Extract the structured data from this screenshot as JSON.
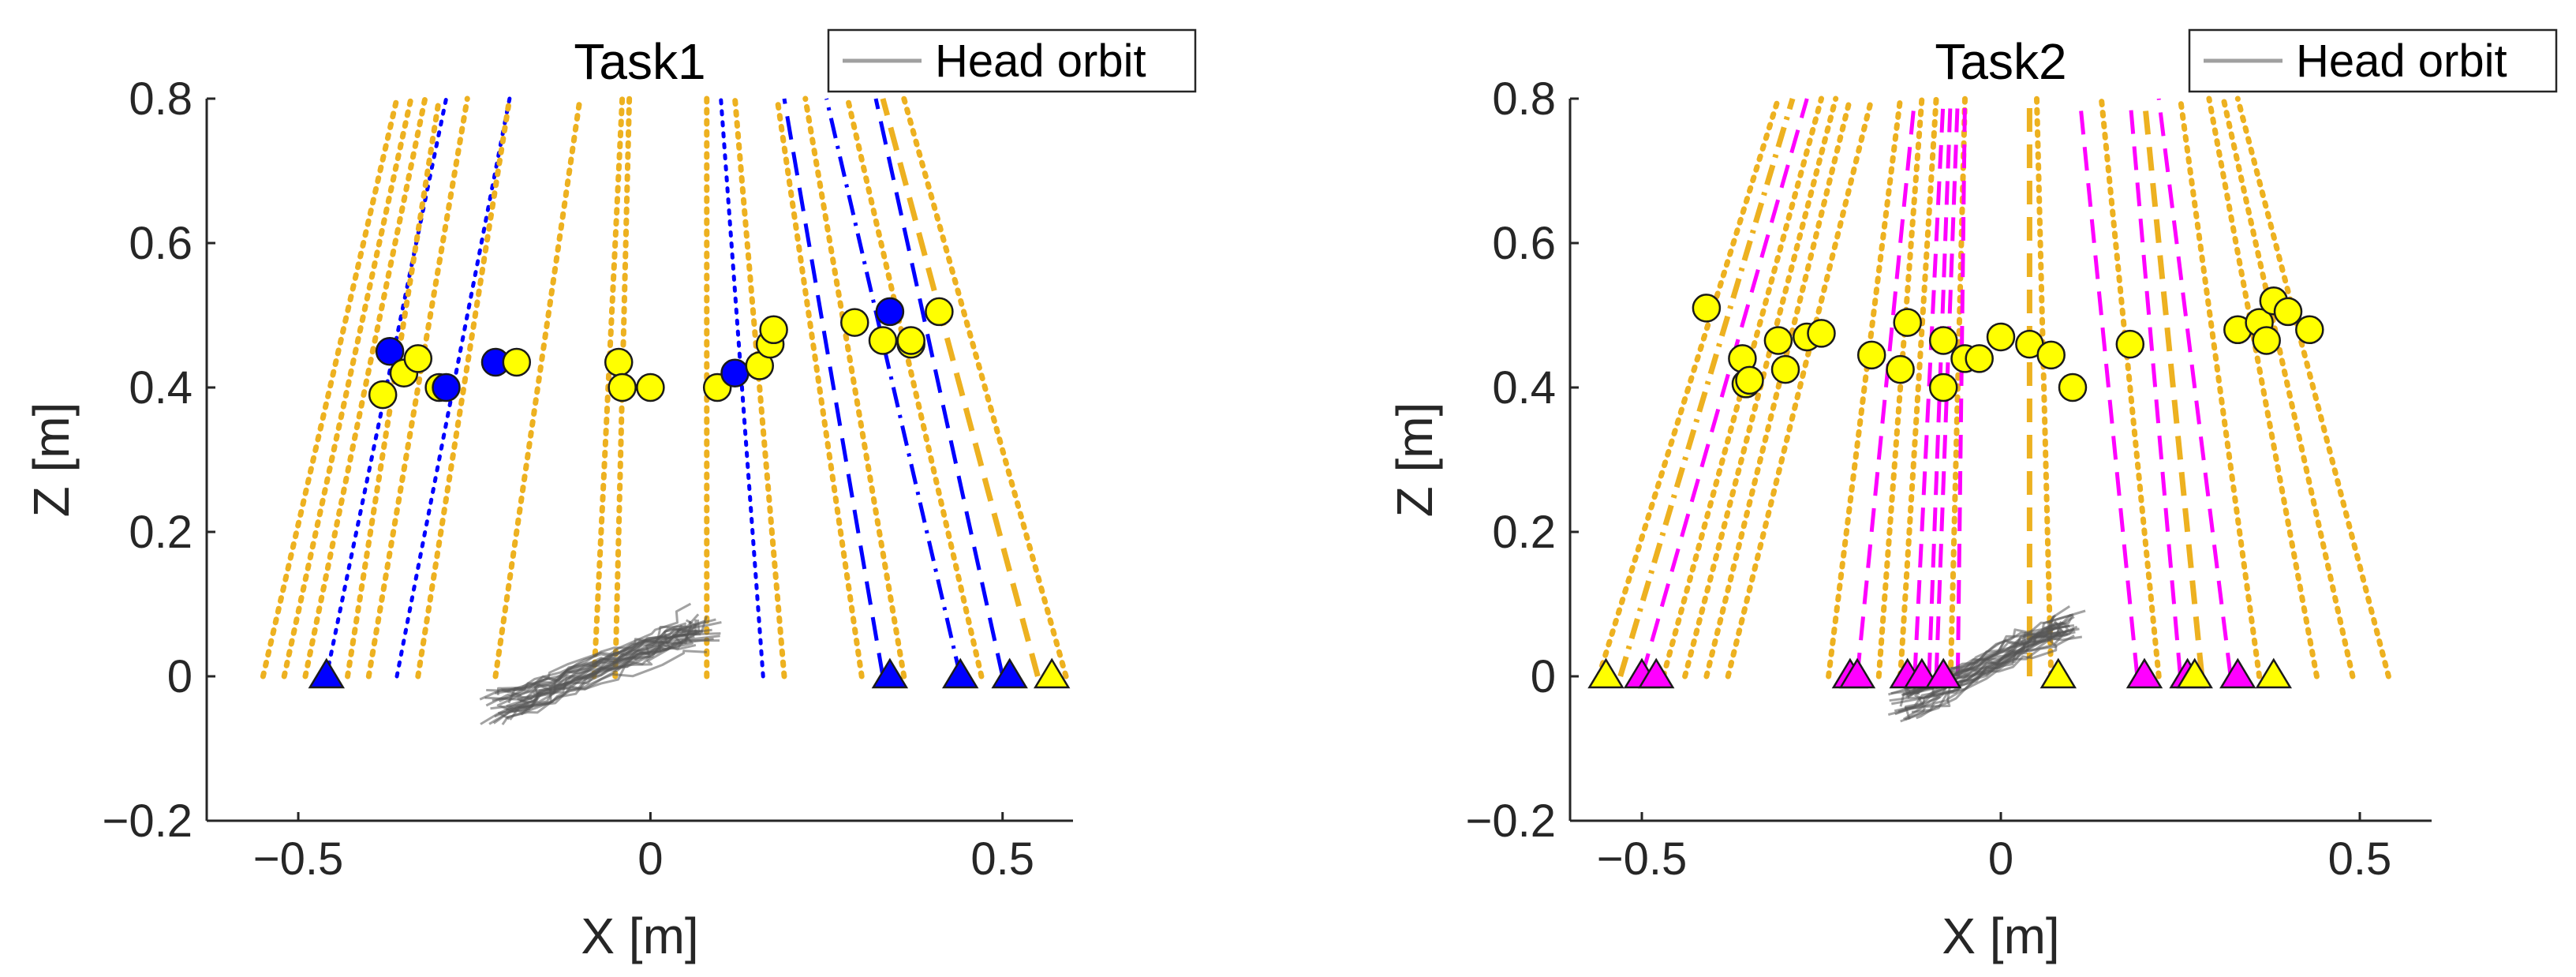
{
  "colors": {
    "orange": "#EDB120",
    "blue": "#0000FF",
    "magenta": "#FF00FF",
    "yellow": "#FFFF00",
    "head": "#555555"
  },
  "chart_data": [
    {
      "type": "scatter",
      "title": "Task1",
      "xlabel": "X [m]",
      "ylabel": "Z [m]",
      "xlim": [
        -0.63,
        0.6
      ],
      "ylim": [
        -0.2,
        0.8
      ],
      "xticks": [
        -0.5,
        0,
        0.5
      ],
      "xtick_labels": [
        "−0.5",
        "0",
        "0.5"
      ],
      "yticks": [
        -0.2,
        0,
        0.2,
        0.4,
        0.6,
        0.8
      ],
      "ytick_labels": [
        "−0.2",
        "0",
        "0.2",
        "0.4",
        "0.6",
        "0.8"
      ],
      "legend": {
        "label": "Head orbit",
        "location": "top-right"
      },
      "line_color_key": "blue",
      "head_center": [
        -0.07,
        0.01
      ],
      "head_spread": [
        0.15,
        0.03
      ],
      "trajectories": [
        {
          "color": "orange",
          "style": "dotted",
          "x0": -0.55,
          "x1": -0.36
        },
        {
          "color": "orange",
          "style": "dotted",
          "x0": -0.52,
          "x1": -0.34
        },
        {
          "color": "orange",
          "style": "dotted",
          "x0": -0.49,
          "x1": -0.32
        },
        {
          "color": "blue",
          "style": "dotted",
          "x0": -0.46,
          "x1": -0.29
        },
        {
          "color": "orange",
          "style": "dotted",
          "x0": -0.43,
          "x1": -0.3
        },
        {
          "color": "orange",
          "style": "dotted",
          "x0": -0.4,
          "x1": -0.26
        },
        {
          "color": "blue",
          "style": "dotted",
          "x0": -0.36,
          "x1": -0.2
        },
        {
          "color": "orange",
          "style": "dotted",
          "x0": -0.33,
          "x1": -0.2
        },
        {
          "color": "orange",
          "style": "dotted",
          "x0": -0.22,
          "x1": -0.1
        },
        {
          "color": "orange",
          "style": "dotted",
          "x0": -0.08,
          "x1": -0.04
        },
        {
          "color": "orange",
          "style": "dotted",
          "x0": -0.05,
          "x1": -0.03
        },
        {
          "color": "orange",
          "style": "dotted",
          "x0": 0.08,
          "x1": 0.08
        },
        {
          "color": "blue",
          "style": "dotted",
          "x0": 0.16,
          "x1": 0.1
        },
        {
          "color": "orange",
          "style": "dotted",
          "x0": 0.19,
          "x1": 0.12
        },
        {
          "color": "orange",
          "style": "dotted",
          "x0": 0.3,
          "x1": 0.18
        },
        {
          "color": "blue",
          "style": "dashed",
          "x0": 0.33,
          "x1": 0.19
        },
        {
          "color": "orange",
          "style": "dotted",
          "x0": 0.36,
          "x1": 0.22
        },
        {
          "color": "blue",
          "style": "dashdot",
          "x0": 0.44,
          "x1": 0.25
        },
        {
          "color": "orange",
          "style": "dotted",
          "x0": 0.47,
          "x1": 0.28
        },
        {
          "color": "blue",
          "style": "dashed",
          "x0": 0.5,
          "x1": 0.32
        },
        {
          "color": "orange",
          "style": "dashed",
          "x0": 0.55,
          "x1": 0.33
        },
        {
          "color": "orange",
          "style": "dotted",
          "x0": 0.59,
          "x1": 0.36
        }
      ],
      "circles": [
        {
          "x": -0.37,
          "z": 0.45,
          "color": "blue"
        },
        {
          "x": -0.35,
          "z": 0.42,
          "color": "yellow"
        },
        {
          "x": -0.33,
          "z": 0.44,
          "color": "yellow"
        },
        {
          "x": -0.38,
          "z": 0.39,
          "color": "yellow"
        },
        {
          "x": -0.3,
          "z": 0.4,
          "color": "yellow"
        },
        {
          "x": -0.29,
          "z": 0.4,
          "color": "blue"
        },
        {
          "x": -0.22,
          "z": 0.435,
          "color": "blue"
        },
        {
          "x": -0.19,
          "z": 0.435,
          "color": "yellow"
        },
        {
          "x": -0.045,
          "z": 0.435,
          "color": "yellow"
        },
        {
          "x": -0.04,
          "z": 0.4,
          "color": "yellow"
        },
        {
          "x": 0.0,
          "z": 0.4,
          "color": "yellow"
        },
        {
          "x": 0.095,
          "z": 0.4,
          "color": "yellow"
        },
        {
          "x": 0.12,
          "z": 0.42,
          "color": "blue"
        },
        {
          "x": 0.155,
          "z": 0.43,
          "color": "yellow"
        },
        {
          "x": 0.17,
          "z": 0.46,
          "color": "yellow"
        },
        {
          "x": 0.175,
          "z": 0.48,
          "color": "yellow"
        },
        {
          "x": 0.29,
          "z": 0.49,
          "color": "yellow"
        },
        {
          "x": 0.33,
          "z": 0.465,
          "color": "yellow"
        },
        {
          "x": 0.34,
          "z": 0.505,
          "color": "blue"
        },
        {
          "x": 0.37,
          "z": 0.46,
          "color": "yellow"
        },
        {
          "x": 0.37,
          "z": 0.465,
          "color": "yellow"
        },
        {
          "x": 0.41,
          "z": 0.505,
          "color": "yellow"
        }
      ],
      "triangles": [
        {
          "x": -0.46,
          "color": "blue"
        },
        {
          "x": 0.34,
          "color": "blue"
        },
        {
          "x": 0.44,
          "color": "blue"
        },
        {
          "x": 0.51,
          "color": "blue"
        },
        {
          "x": 0.57,
          "color": "yellow"
        }
      ]
    },
    {
      "type": "scatter",
      "title": "Task2",
      "xlabel": "X [m]",
      "ylabel": "Z [m]",
      "xlim": [
        -0.6,
        0.6
      ],
      "ylim": [
        -0.2,
        0.8
      ],
      "xticks": [
        -0.5,
        0,
        0.5
      ],
      "xtick_labels": [
        "−0.5",
        "0",
        "0.5"
      ],
      "yticks": [
        -0.2,
        0,
        0.2,
        0.4,
        0.6,
        0.8
      ],
      "ytick_labels": [
        "−0.2",
        "0",
        "0.2",
        "0.4",
        "0.6",
        "0.8"
      ],
      "legend": {
        "label": "Head orbit",
        "location": "top-right"
      },
      "line_color_key": "magenta",
      "head_center": [
        -0.02,
        0.02
      ],
      "head_spread": [
        0.12,
        0.03
      ],
      "trajectories": [
        {
          "color": "orange",
          "style": "dotted",
          "x0": -0.56,
          "x1": -0.31
        },
        {
          "color": "orange",
          "style": "dashdot",
          "x0": -0.53,
          "x1": -0.29
        },
        {
          "color": "magenta",
          "style": "dashed",
          "x0": -0.5,
          "x1": -0.27
        },
        {
          "color": "orange",
          "style": "dotted",
          "x0": -0.47,
          "x1": -0.25
        },
        {
          "color": "orange",
          "style": "dotted",
          "x0": -0.44,
          "x1": -0.23
        },
        {
          "color": "orange",
          "style": "dotted",
          "x0": -0.41,
          "x1": -0.21
        },
        {
          "color": "orange",
          "style": "dotted",
          "x0": -0.38,
          "x1": -0.18
        },
        {
          "color": "orange",
          "style": "dotted",
          "x0": -0.24,
          "x1": -0.14
        },
        {
          "color": "magenta",
          "style": "dashed",
          "x0": -0.2,
          "x1": -0.12
        },
        {
          "color": "orange",
          "style": "dotted",
          "x0": -0.17,
          "x1": -0.11
        },
        {
          "color": "orange",
          "style": "dotted",
          "x0": -0.14,
          "x1": -0.09
        },
        {
          "color": "magenta",
          "style": "dashed",
          "x0": -0.12,
          "x1": -0.08
        },
        {
          "color": "magenta",
          "style": "dashed",
          "x0": -0.1,
          "x1": -0.07
        },
        {
          "color": "magenta",
          "style": "dashed",
          "x0": -0.09,
          "x1": -0.06
        },
        {
          "color": "orange",
          "style": "dotted",
          "x0": -0.07,
          "x1": -0.05
        },
        {
          "color": "magenta",
          "style": "dashed",
          "x0": -0.06,
          "x1": -0.05
        },
        {
          "color": "orange",
          "style": "dashed",
          "x0": 0.04,
          "x1": 0.04
        },
        {
          "color": "orange",
          "style": "dotted",
          "x0": 0.07,
          "x1": 0.05
        },
        {
          "color": "magenta",
          "style": "dashed",
          "x0": 0.19,
          "x1": 0.11
        },
        {
          "color": "orange",
          "style": "dotted",
          "x0": 0.22,
          "x1": 0.14
        },
        {
          "color": "magenta",
          "style": "dashed",
          "x0": 0.25,
          "x1": 0.18
        },
        {
          "color": "orange",
          "style": "dashed",
          "x0": 0.28,
          "x1": 0.2
        },
        {
          "color": "magenta",
          "style": "dashed",
          "x0": 0.32,
          "x1": 0.22
        },
        {
          "color": "orange",
          "style": "dotted",
          "x0": 0.36,
          "x1": 0.25
        },
        {
          "color": "orange",
          "style": "dotted",
          "x0": 0.44,
          "x1": 0.29
        },
        {
          "color": "orange",
          "style": "dotted",
          "x0": 0.49,
          "x1": 0.31
        },
        {
          "color": "orange",
          "style": "dotted",
          "x0": 0.54,
          "x1": 0.33
        }
      ],
      "circles": [
        {
          "x": -0.41,
          "z": 0.51,
          "color": "yellow"
        },
        {
          "x": -0.36,
          "z": 0.44,
          "color": "yellow"
        },
        {
          "x": -0.355,
          "z": 0.405,
          "color": "yellow"
        },
        {
          "x": -0.35,
          "z": 0.41,
          "color": "yellow"
        },
        {
          "x": -0.31,
          "z": 0.465,
          "color": "yellow"
        },
        {
          "x": -0.3,
          "z": 0.425,
          "color": "yellow"
        },
        {
          "x": -0.27,
          "z": 0.47,
          "color": "yellow"
        },
        {
          "x": -0.25,
          "z": 0.475,
          "color": "yellow"
        },
        {
          "x": -0.18,
          "z": 0.445,
          "color": "yellow"
        },
        {
          "x": -0.14,
          "z": 0.425,
          "color": "yellow"
        },
        {
          "x": -0.13,
          "z": 0.49,
          "color": "yellow"
        },
        {
          "x": -0.08,
          "z": 0.465,
          "color": "yellow"
        },
        {
          "x": -0.08,
          "z": 0.4,
          "color": "yellow"
        },
        {
          "x": -0.05,
          "z": 0.44,
          "color": "yellow"
        },
        {
          "x": -0.03,
          "z": 0.44,
          "color": "yellow"
        },
        {
          "x": 0.0,
          "z": 0.47,
          "color": "yellow"
        },
        {
          "x": 0.04,
          "z": 0.46,
          "color": "yellow"
        },
        {
          "x": 0.07,
          "z": 0.445,
          "color": "yellow"
        },
        {
          "x": 0.1,
          "z": 0.4,
          "color": "yellow"
        },
        {
          "x": 0.18,
          "z": 0.46,
          "color": "yellow"
        },
        {
          "x": 0.33,
          "z": 0.48,
          "color": "yellow"
        },
        {
          "x": 0.36,
          "z": 0.49,
          "color": "yellow"
        },
        {
          "x": 0.37,
          "z": 0.465,
          "color": "yellow"
        },
        {
          "x": 0.38,
          "z": 0.52,
          "color": "yellow"
        },
        {
          "x": 0.4,
          "z": 0.505,
          "color": "yellow"
        },
        {
          "x": 0.43,
          "z": 0.48,
          "color": "yellow"
        }
      ],
      "triangles": [
        {
          "x": -0.55,
          "color": "yellow"
        },
        {
          "x": -0.5,
          "color": "magenta"
        },
        {
          "x": -0.48,
          "color": "magenta"
        },
        {
          "x": -0.21,
          "color": "magenta"
        },
        {
          "x": -0.2,
          "color": "magenta"
        },
        {
          "x": -0.13,
          "color": "magenta"
        },
        {
          "x": -0.11,
          "color": "magenta"
        },
        {
          "x": -0.08,
          "color": "magenta"
        },
        {
          "x": 0.08,
          "color": "yellow"
        },
        {
          "x": 0.2,
          "color": "magenta"
        },
        {
          "x": 0.26,
          "color": "magenta"
        },
        {
          "x": 0.27,
          "color": "yellow"
        },
        {
          "x": 0.33,
          "color": "magenta"
        },
        {
          "x": 0.38,
          "color": "yellow"
        }
      ]
    }
  ]
}
